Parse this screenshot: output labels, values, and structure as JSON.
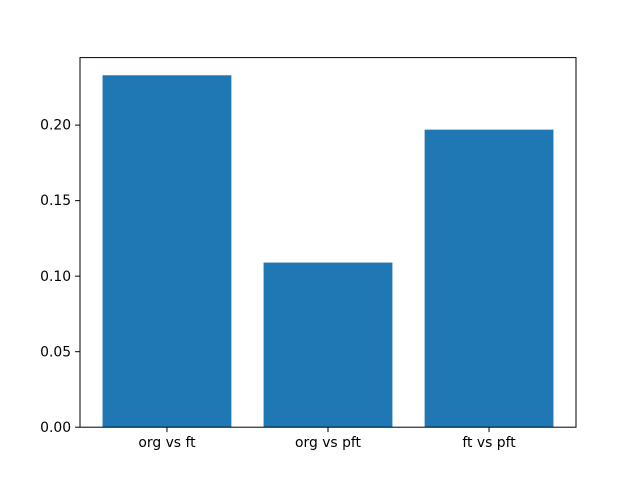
{
  "chart_data": {
    "type": "bar",
    "title": "",
    "xlabel": "",
    "ylabel": "",
    "categories": [
      "org vs ft",
      "org vs pft",
      "ft vs pft"
    ],
    "values": [
      0.233,
      0.109,
      0.197
    ],
    "ytick_labels": [
      "0.00",
      "0.05",
      "0.10",
      "0.15",
      "0.20"
    ],
    "ytick_values": [
      0.0,
      0.05,
      0.1,
      0.15,
      0.2
    ],
    "ylim": [
      0,
      0.2447
    ],
    "bar_width_fraction": 0.8,
    "bar_color": "#1f77b4",
    "spine_color": "#000000",
    "tick_color": "#000000",
    "background_color": "#ffffff",
    "grid": false,
    "legend_position": "none"
  }
}
